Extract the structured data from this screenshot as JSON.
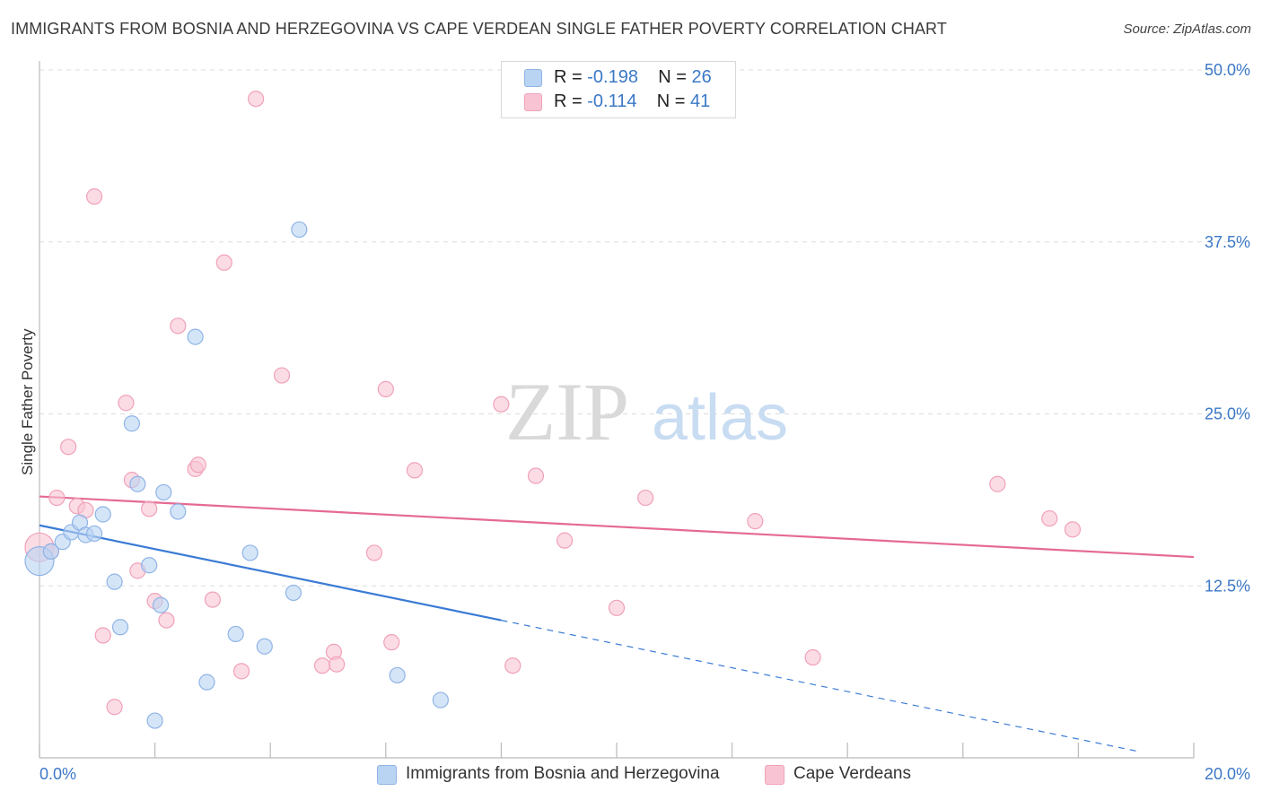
{
  "header": {
    "title": "IMMIGRANTS FROM BOSNIA AND HERZEGOVINA VS CAPE VERDEAN SINGLE FATHER POVERTY CORRELATION CHART",
    "source": "Source: ZipAtlas.com"
  },
  "watermark": {
    "zip": "ZIP",
    "atlas": "atlas"
  },
  "colors": {
    "blue_fill": "#b9d3f3",
    "blue_stroke": "#8fb4e6",
    "blue_line": "#3a7bd5",
    "pink_fill": "#f8c4d3",
    "pink_stroke": "#f0a1b8",
    "pink_line": "#e56a93",
    "tick_text": "#3b78c7",
    "grid": "#dcdcdc"
  },
  "legend": {
    "rows": [
      {
        "r_label": "R =",
        "r_value": "-0.198",
        "n_label": "N =",
        "n_value": "26",
        "color": "#b9d3f3"
      },
      {
        "r_label": "R =",
        "r_value": "-0.114",
        "n_label": "N =",
        "n_value": "41",
        "color": "#f8c4d3"
      }
    ]
  },
  "bottom_legend": {
    "items": [
      {
        "label": "Immigrants from Bosnia and Herzegovina",
        "color": "#b9d3f3"
      },
      {
        "label": "Cape Verdeans",
        "color": "#f8c4d3"
      }
    ]
  },
  "chart_data": {
    "type": "scatter",
    "title": "IMMIGRANTS FROM BOSNIA AND HERZEGOVINA VS CAPE VERDEAN SINGLE FATHER POVERTY CORRELATION CHART",
    "xlabel": "",
    "ylabel": "Single Father Poverty",
    "xlim": [
      0,
      20
    ],
    "ylim": [
      0,
      50
    ],
    "x_tick_labels": [
      {
        "value": 0,
        "label": "0.0%"
      },
      {
        "value": 20,
        "label": "20.0%"
      }
    ],
    "y_tick_labels": [
      {
        "value": 12.5,
        "label": "12.5%"
      },
      {
        "value": 25,
        "label": "25.0%"
      },
      {
        "value": 37.5,
        "label": "37.5%"
      },
      {
        "value": 50,
        "label": "50.0%"
      }
    ],
    "series": [
      {
        "name": "Immigrants from Bosnia and Herzegovina",
        "color": "#b9d3f3",
        "points": [
          [
            0.0,
            14.3
          ],
          [
            0.2,
            15.0
          ],
          [
            0.4,
            15.7
          ],
          [
            0.55,
            16.4
          ],
          [
            0.7,
            17.1
          ],
          [
            0.8,
            16.2
          ],
          [
            0.95,
            16.3
          ],
          [
            1.1,
            17.7
          ],
          [
            1.3,
            12.8
          ],
          [
            1.4,
            9.5
          ],
          [
            1.6,
            24.3
          ],
          [
            1.7,
            19.9
          ],
          [
            1.9,
            14.0
          ],
          [
            2.1,
            11.1
          ],
          [
            2.15,
            19.3
          ],
          [
            2.4,
            17.9
          ],
          [
            2.7,
            30.6
          ],
          [
            2.9,
            5.5
          ],
          [
            3.4,
            9.0
          ],
          [
            3.65,
            14.9
          ],
          [
            3.9,
            8.1
          ],
          [
            4.4,
            12.0
          ],
          [
            4.5,
            38.4
          ],
          [
            6.2,
            6.0
          ],
          [
            6.95,
            4.2
          ],
          [
            2.0,
            2.7
          ]
        ],
        "trend": {
          "x0": 0.0,
          "y0": 16.9,
          "x1": 8.0,
          "y1": 10.0,
          "dashed_to_x": 19.0,
          "dashed_to_y": 0.5
        }
      },
      {
        "name": "Cape Verdeans",
        "color": "#f8c4d3",
        "points": [
          [
            0.0,
            15.3
          ],
          [
            0.3,
            18.9
          ],
          [
            0.5,
            22.6
          ],
          [
            0.65,
            18.3
          ],
          [
            0.8,
            18.0
          ],
          [
            0.95,
            40.8
          ],
          [
            1.1,
            8.9
          ],
          [
            1.3,
            3.7
          ],
          [
            1.5,
            25.8
          ],
          [
            1.6,
            20.2
          ],
          [
            1.7,
            13.6
          ],
          [
            1.9,
            18.1
          ],
          [
            2.0,
            11.4
          ],
          [
            2.2,
            10.0
          ],
          [
            2.4,
            31.4
          ],
          [
            2.7,
            21.0
          ],
          [
            2.75,
            21.3
          ],
          [
            3.0,
            11.5
          ],
          [
            3.2,
            36.0
          ],
          [
            3.5,
            6.3
          ],
          [
            3.75,
            47.9
          ],
          [
            4.2,
            27.8
          ],
          [
            4.9,
            6.7
          ],
          [
            5.1,
            7.7
          ],
          [
            5.15,
            6.8
          ],
          [
            5.8,
            14.9
          ],
          [
            6.0,
            26.8
          ],
          [
            6.1,
            8.4
          ],
          [
            6.5,
            20.9
          ],
          [
            8.0,
            25.7
          ],
          [
            8.2,
            6.7
          ],
          [
            8.6,
            20.5
          ],
          [
            9.1,
            15.8
          ],
          [
            10.0,
            10.9
          ],
          [
            10.5,
            18.9
          ],
          [
            12.4,
            17.2
          ],
          [
            13.4,
            7.3
          ],
          [
            16.6,
            19.9
          ],
          [
            17.5,
            17.4
          ],
          [
            17.9,
            16.6
          ],
          [
            0.2,
            15.0
          ]
        ],
        "trend": {
          "x0": 0.0,
          "y0": 19.0,
          "x1": 20.0,
          "y1": 14.6
        }
      }
    ],
    "grid": true,
    "legend_position": "top-center"
  }
}
